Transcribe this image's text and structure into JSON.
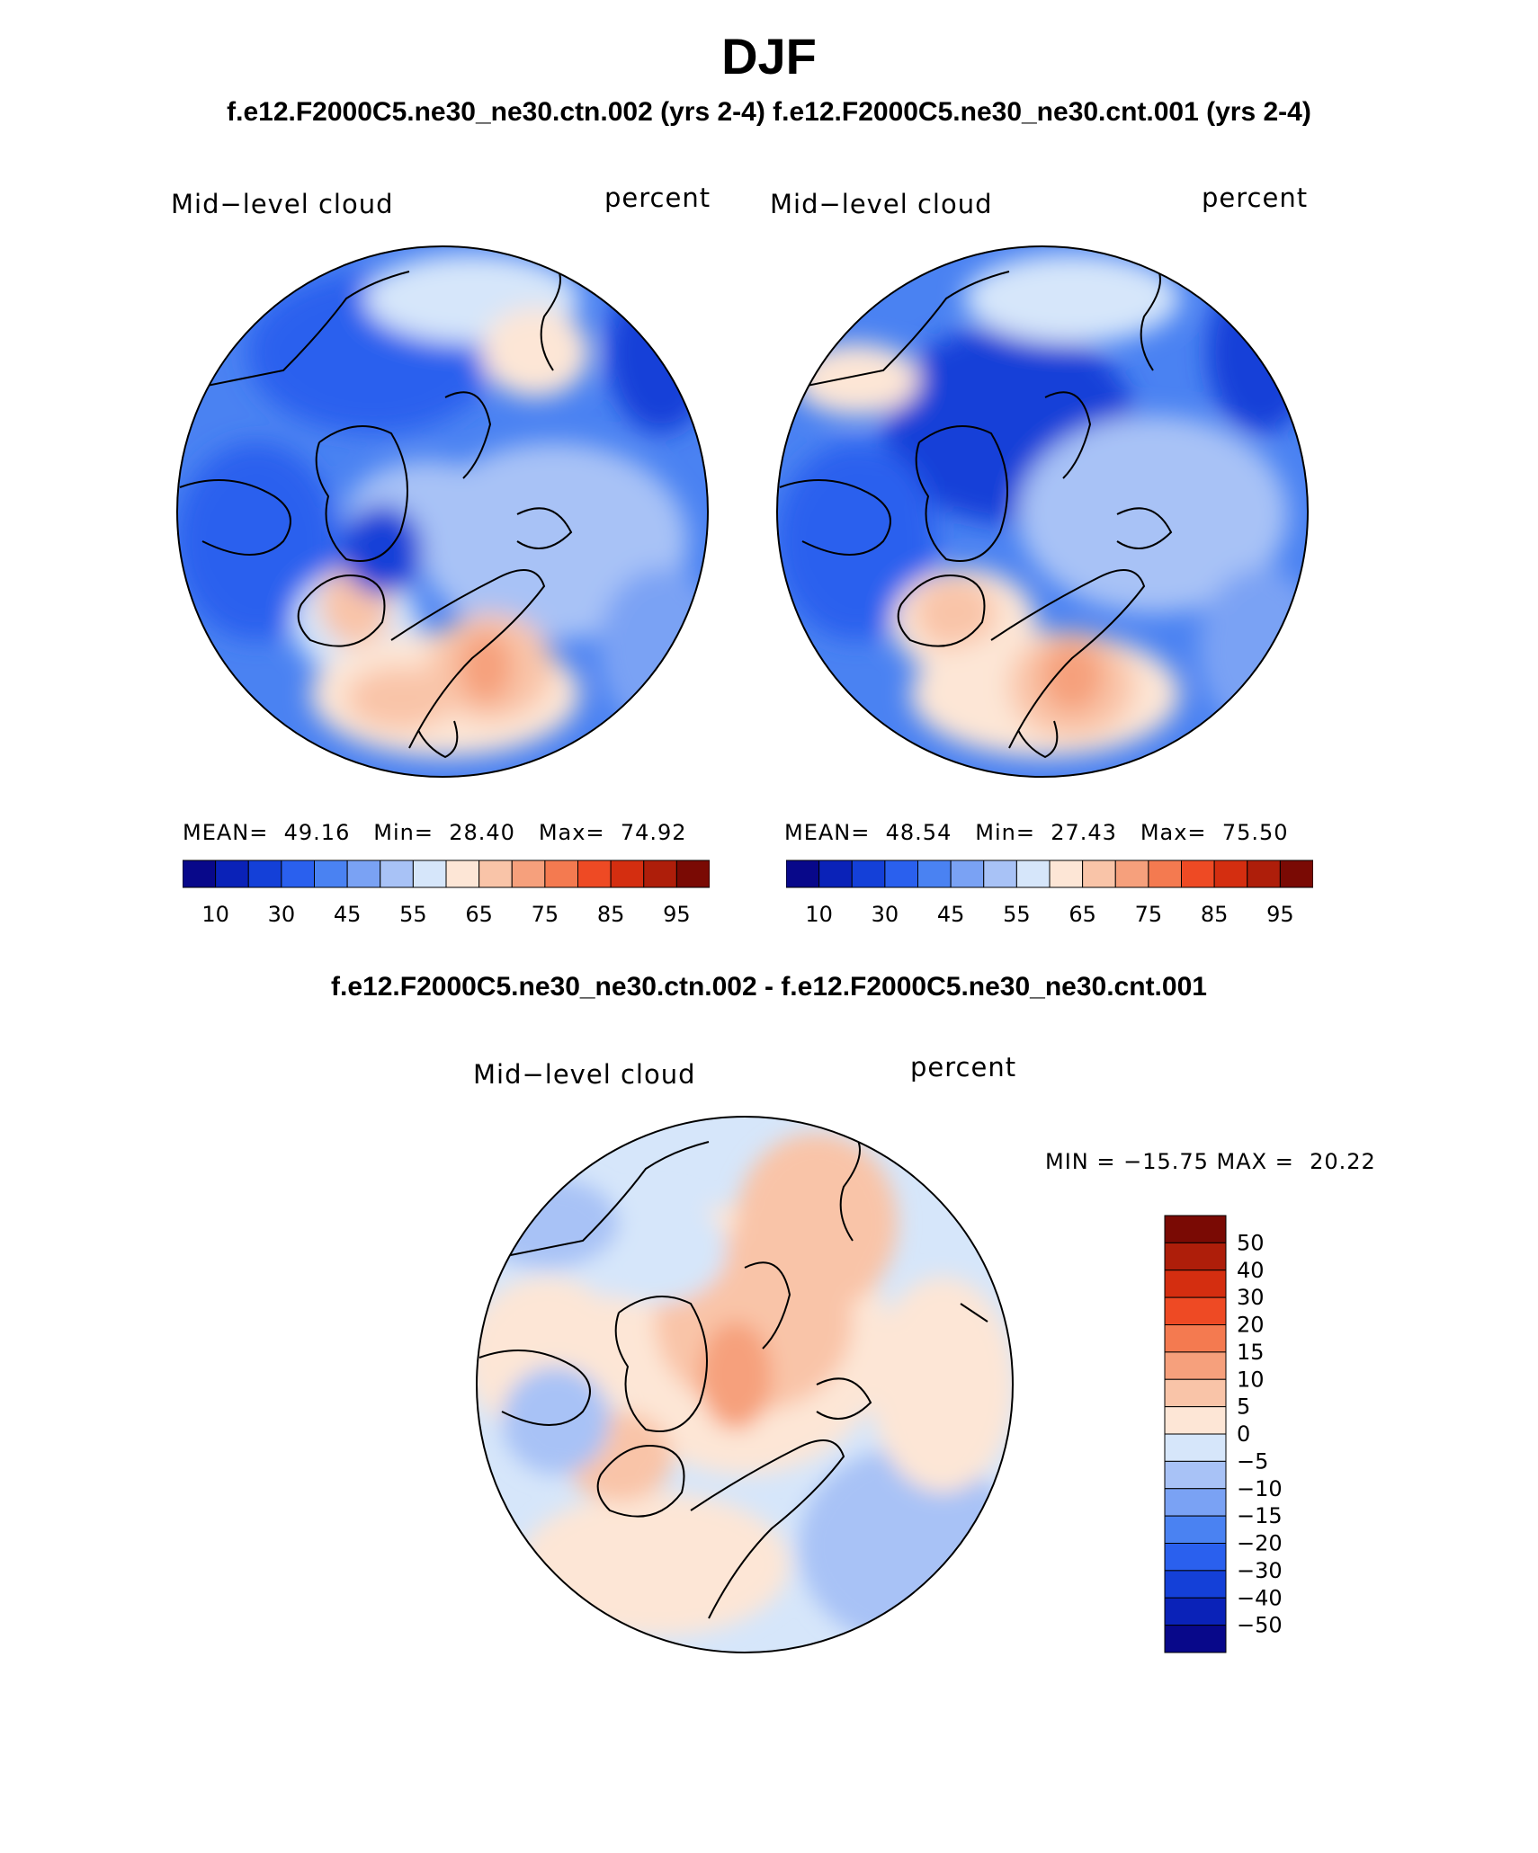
{
  "title": "DJF",
  "top_subtitle": "f.e12.F2000C5.ne30_ne30.ctn.002 (yrs 2-4) f.e12.F2000C5.ne30_ne30.cnt.001 (yrs 2-4)",
  "diff_subtitle": "f.e12.F2000C5.ne30_ne30.ctn.002 - f.e12.F2000C5.ne30_ne30.cnt.001",
  "colors": {
    "abs_scale": [
      "#08088a",
      "#0a22b8",
      "#1440d8",
      "#2a60ee",
      "#4a82f2",
      "#7aa2f4",
      "#a8c2f6",
      "#d6e6fa",
      "#fde6d6",
      "#f9c4a8",
      "#f6a07c",
      "#f47a50",
      "#ee4a24",
      "#d42e10",
      "#ae1e0a",
      "#7a0a04"
    ],
    "diff_scale": [
      "#08088a",
      "#0a22b8",
      "#1440d8",
      "#2a60ee",
      "#4a82f2",
      "#7aa2f4",
      "#a8c2f6",
      "#d6e6fa",
      "#fde6d6",
      "#f9c4a8",
      "#f6a07c",
      "#f47a50",
      "#ee4a24",
      "#d42e10",
      "#ae1e0a",
      "#7a0a04"
    ]
  },
  "panels": [
    {
      "variable": "Mid−level cloud",
      "units": "percent",
      "mean_label": "MEAN=",
      "mean_value": "49.16",
      "min_label": "Min=",
      "min_value": "28.40",
      "max_label": "Max=",
      "max_value": "74.92",
      "colorbar_ticks": [
        "10",
        "30",
        "45",
        "55",
        "65",
        "75",
        "85",
        "95"
      ]
    },
    {
      "variable": "Mid−level cloud",
      "units": "percent",
      "mean_label": "MEAN=",
      "mean_value": "48.54",
      "min_label": "Min=",
      "min_value": "27.43",
      "max_label": "Max=",
      "max_value": "75.50",
      "colorbar_ticks": [
        "10",
        "30",
        "45",
        "55",
        "65",
        "75",
        "85",
        "95"
      ]
    }
  ],
  "difference": {
    "variable": "Mid−level cloud",
    "units": "percent",
    "minmax_text": "MIN = −15.75 MAX =  20.22",
    "colorbar_ticks": [
      "50",
      "40",
      "30",
      "20",
      "15",
      "10",
      "5",
      "0",
      "−5",
      "−10",
      "−15",
      "−20",
      "−30",
      "−40",
      "−50"
    ]
  }
}
